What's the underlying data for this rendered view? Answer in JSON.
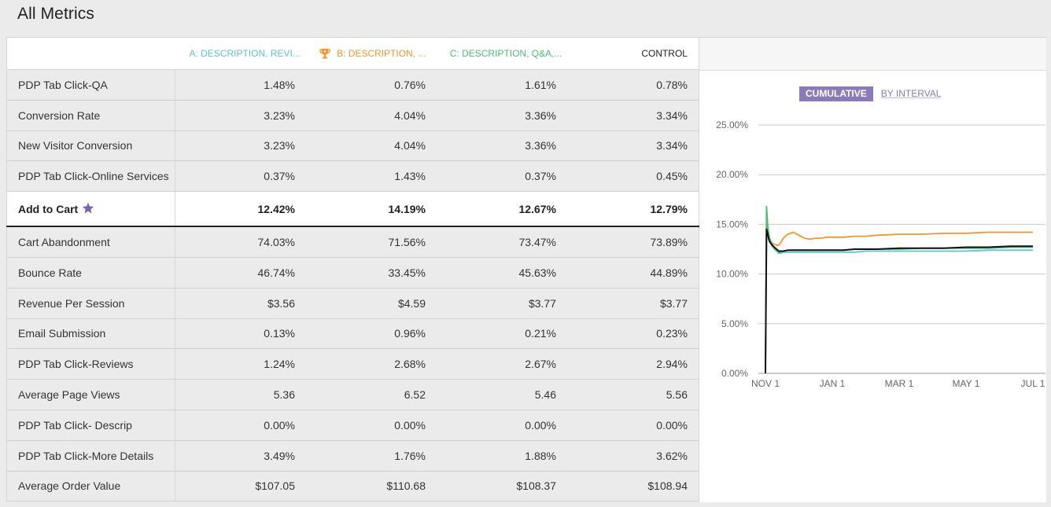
{
  "page": {
    "title": "All Metrics"
  },
  "table": {
    "columns": [
      {
        "label": "A: DESCRIPTION, REVI...",
        "color": "#5cc3cf"
      },
      {
        "label": "B: DESCRIPTION, ...",
        "color": "#f0962d",
        "icon": "trophy-icon"
      },
      {
        "label": "C: DESCRIPTION, Q&A,...",
        "color": "#4dbd74"
      },
      {
        "label": "CONTROL",
        "color": "#222222"
      }
    ],
    "rows": [
      {
        "name": "PDP Tab Click-QA",
        "values": [
          "1.48%",
          "0.76%",
          "1.61%",
          "0.78%"
        ]
      },
      {
        "name": "Conversion Rate",
        "values": [
          "3.23%",
          "4.04%",
          "3.36%",
          "3.34%"
        ]
      },
      {
        "name": "New Visitor Conversion",
        "values": [
          "3.23%",
          "4.04%",
          "3.36%",
          "3.34%"
        ]
      },
      {
        "name": "PDP Tab Click-Online Services",
        "values": [
          "0.37%",
          "1.43%",
          "0.37%",
          "0.45%"
        ]
      },
      {
        "name": "Add to Cart",
        "values": [
          "12.42%",
          "14.19%",
          "12.67%",
          "12.79%"
        ],
        "primary": true,
        "icon": "star-icon"
      },
      {
        "name": "Cart Abandonment",
        "values": [
          "74.03%",
          "71.56%",
          "73.47%",
          "73.89%"
        ]
      },
      {
        "name": "Bounce Rate",
        "values": [
          "46.74%",
          "33.45%",
          "45.63%",
          "44.89%"
        ]
      },
      {
        "name": "Revenue Per Session",
        "values": [
          "$3.56",
          "$4.59",
          "$3.77",
          "$3.77"
        ]
      },
      {
        "name": "Email Submission",
        "values": [
          "0.13%",
          "0.96%",
          "0.21%",
          "0.23%"
        ]
      },
      {
        "name": "PDP Tab Click-Reviews",
        "values": [
          "1.24%",
          "2.68%",
          "2.67%",
          "2.94%"
        ]
      },
      {
        "name": "Average Page Views",
        "values": [
          "5.36",
          "6.52",
          "5.46",
          "5.56"
        ]
      },
      {
        "name": "PDP Tab Click- Descrip",
        "values": [
          "0.00%",
          "0.00%",
          "0.00%",
          "0.00%"
        ]
      },
      {
        "name": "PDP Tab Click-More Details",
        "values": [
          "3.49%",
          "1.76%",
          "1.88%",
          "3.62%"
        ]
      },
      {
        "name": "Average Order Value",
        "values": [
          "$107.05",
          "$110.68",
          "$108.37",
          "$108.94"
        ]
      }
    ]
  },
  "chart_toggle": {
    "cumulative_label": "CUMULATIVE",
    "interval_label": "BY INTERVAL",
    "selected": "cumulative"
  },
  "chart_data": {
    "type": "line",
    "title": "",
    "xlabel": "",
    "ylabel": "",
    "x_ticks": [
      "NOV 1",
      "JAN 1",
      "MAR 1",
      "MAY 1",
      "JUL 1"
    ],
    "y_ticks": [
      "0.00%",
      "5.00%",
      "10.00%",
      "15.00%",
      "20.00%",
      "25.00%"
    ],
    "ylim": [
      0,
      25
    ],
    "grid": true,
    "x_days": [
      0,
      1,
      2,
      3,
      4,
      6,
      8,
      10,
      12,
      14,
      16,
      20,
      25,
      30,
      35,
      40,
      45,
      50,
      55,
      60,
      70,
      80,
      90,
      100,
      120,
      140,
      160,
      180,
      200,
      220,
      240
    ],
    "series": [
      {
        "color": "#5cc3cf",
        "values": [
          0,
          14.8,
          14.2,
          13.6,
          13.3,
          12.8,
          12.5,
          12.3,
          12.1,
          12.1,
          12.2,
          12.2,
          12.2,
          12.2,
          12.2,
          12.2,
          12.2,
          12.2,
          12.2,
          12.2,
          12.2,
          12.2,
          12.3,
          12.3,
          12.3,
          12.3,
          12.3,
          12.3,
          12.4,
          12.4,
          12.4
        ]
      },
      {
        "color": "#f0962d",
        "values": [
          0,
          14.9,
          14.3,
          13.8,
          13.4,
          13.1,
          13.0,
          12.9,
          12.9,
          13.2,
          13.6,
          14.0,
          14.2,
          13.9,
          13.6,
          13.5,
          13.6,
          13.6,
          13.7,
          13.7,
          13.7,
          13.8,
          13.8,
          13.9,
          14.0,
          14.0,
          14.1,
          14.1,
          14.2,
          14.2,
          14.2
        ]
      },
      {
        "color": "#4dbd74",
        "values": [
          0,
          16.8,
          15.0,
          14.0,
          13.5,
          13.0,
          12.6,
          12.3,
          12.2,
          12.2,
          12.3,
          12.4,
          12.4,
          12.4,
          12.4,
          12.4,
          12.4,
          12.4,
          12.4,
          12.4,
          12.4,
          12.5,
          12.5,
          12.5,
          12.5,
          12.6,
          12.6,
          12.6,
          12.6,
          12.7,
          12.7
        ]
      },
      {
        "color": "#111111",
        "values": [
          0,
          14.5,
          14.1,
          13.5,
          13.2,
          12.9,
          12.7,
          12.5,
          12.3,
          12.3,
          12.3,
          12.4,
          12.4,
          12.4,
          12.4,
          12.4,
          12.4,
          12.4,
          12.4,
          12.4,
          12.4,
          12.5,
          12.5,
          12.5,
          12.6,
          12.6,
          12.6,
          12.7,
          12.7,
          12.8,
          12.8
        ]
      }
    ]
  }
}
